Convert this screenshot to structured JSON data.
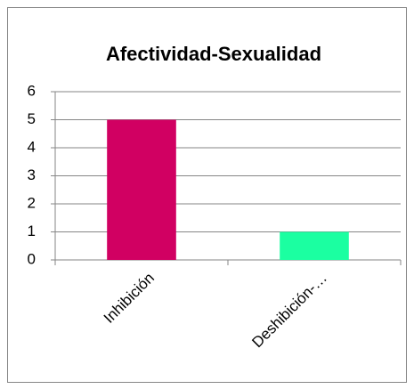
{
  "chart_data": {
    "type": "bar",
    "title": "Afectividad-Sexualidad",
    "categories": [
      "Inhibición",
      "Deshibición-…"
    ],
    "values": [
      5,
      1
    ],
    "colors": [
      "#d10062",
      "#1bffa1"
    ],
    "ylim": [
      0,
      6
    ],
    "yticks": [
      0,
      1,
      2,
      3,
      4,
      5,
      6
    ],
    "grid": true
  }
}
